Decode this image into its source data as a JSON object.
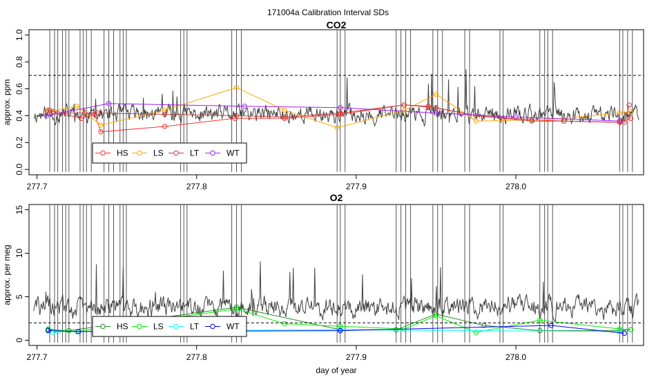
{
  "figure_title": "171004a   Calibration Interval SDs",
  "chart_data": [
    {
      "type": "line",
      "title": "CO2",
      "xlabel": "",
      "ylabel": "approx. ppm",
      "xlim": [
        277.695,
        278.08
      ],
      "ylim": [
        -0.04,
        1.04
      ],
      "x_ticks": [
        277.7,
        277.8,
        277.9,
        278.0
      ],
      "x_tick_labels": [
        "277.7",
        "277.8",
        "277.9",
        "278.0"
      ],
      "y_ticks": [
        0.0,
        0.2,
        0.4,
        0.6,
        0.8,
        1.0
      ],
      "y_tick_labels": [
        "0.0",
        "0.2",
        "0.4",
        "0.6",
        "0.8",
        "1.0"
      ],
      "threshold": 0.7,
      "trace": {
        "color": "#404040",
        "baseline": 0.41,
        "noise": 0.05,
        "seed": 11
      },
      "spike_x": [
        277.708,
        277.711,
        277.713,
        277.716,
        277.718,
        277.72,
        277.727,
        277.729,
        277.731,
        277.734,
        277.742,
        277.745,
        277.748,
        277.752,
        277.754,
        277.756,
        277.79,
        277.792,
        277.794,
        277.822,
        277.825,
        277.828,
        277.888,
        277.89,
        277.893,
        277.925,
        277.928,
        277.931,
        277.934,
        277.948,
        277.951,
        277.954,
        277.968,
        277.971,
        277.99,
        277.992,
        278.015,
        278.018,
        278.02,
        278.023,
        278.065,
        278.067,
        278.07,
        278.073
      ],
      "series": [
        {
          "name": "HS",
          "color": "#ff3030",
          "x": [
            277.707,
            277.71,
            277.728,
            277.736,
            277.74,
            277.78,
            277.824,
            277.855,
            277.89,
            277.93,
            277.945,
            277.975,
            278.01,
            278.03,
            278.065,
            278.072
          ],
          "y": [
            0.44,
            0.43,
            0.38,
            0.41,
            0.28,
            0.32,
            0.38,
            0.38,
            0.41,
            0.48,
            0.47,
            0.4,
            0.37,
            0.36,
            0.35,
            0.38
          ]
        },
        {
          "name": "LS",
          "color": "#ffa500",
          "x": [
            277.707,
            277.725,
            277.74,
            277.78,
            277.825,
            277.855,
            277.888,
            277.93,
            277.95,
            277.975,
            278.02,
            278.065,
            278.072
          ],
          "y": [
            0.43,
            0.47,
            0.33,
            0.44,
            0.61,
            0.44,
            0.31,
            0.44,
            0.56,
            0.36,
            0.37,
            0.42,
            0.43
          ]
        },
        {
          "name": "LT",
          "color": "#c04040",
          "x": [
            277.708,
            277.71,
            277.713,
            277.73,
            277.738,
            277.78,
            277.825,
            277.855,
            277.89,
            277.93,
            277.95,
            277.975,
            278.01,
            278.03,
            278.068,
            278.071
          ],
          "y": [
            0.44,
            0.43,
            0.42,
            0.42,
            0.42,
            0.41,
            0.4,
            0.39,
            0.42,
            0.48,
            0.46,
            0.4,
            0.36,
            0.36,
            0.35,
            0.48
          ]
        },
        {
          "name": "WT",
          "color": "#a020f0",
          "x": [
            277.706,
            277.745,
            277.83,
            277.89,
            277.95,
            278.0,
            278.065
          ],
          "y": [
            0.4,
            0.49,
            0.47,
            0.46,
            0.42,
            0.39,
            0.36
          ]
        }
      ],
      "legend": {
        "position": "bottom-left",
        "entries": [
          "HS",
          "LS",
          "LT",
          "WT"
        ]
      }
    },
    {
      "type": "line",
      "title": "O2",
      "xlabel": "day of year",
      "ylabel": "approx. per meg",
      "xlim": [
        277.695,
        278.08
      ],
      "ylim": [
        -0.6,
        15.6
      ],
      "x_ticks": [
        277.7,
        277.8,
        277.9,
        278.0
      ],
      "x_tick_labels": [
        "277.7",
        "277.8",
        "277.9",
        "278.0"
      ],
      "y_ticks": [
        0,
        5,
        10,
        15
      ],
      "y_tick_labels": [
        "0",
        "5",
        "10",
        "15"
      ],
      "threshold": 2.0,
      "trace": {
        "color": "#404040",
        "baseline": 3.8,
        "noise": 0.9,
        "seed": 29
      },
      "spike_x": [
        277.708,
        277.711,
        277.713,
        277.716,
        277.718,
        277.72,
        277.727,
        277.729,
        277.731,
        277.734,
        277.742,
        277.745,
        277.748,
        277.752,
        277.754,
        277.756,
        277.79,
        277.792,
        277.794,
        277.822,
        277.825,
        277.828,
        277.888,
        277.89,
        277.893,
        277.925,
        277.928,
        277.931,
        277.934,
        277.948,
        277.951,
        277.954,
        277.968,
        277.971,
        277.99,
        277.992,
        278.015,
        278.018,
        278.02,
        278.023,
        278.065,
        278.067,
        278.07,
        278.073
      ],
      "series": [
        {
          "name": "HS",
          "color": "#228b22",
          "x": [
            277.707,
            277.72,
            277.825,
            277.89,
            277.925,
            277.95,
            277.98,
            278.015,
            278.065,
            278.072
          ],
          "y": [
            1.2,
            1.1,
            3.8,
            1.2,
            1.2,
            3.0,
            1.7,
            1.1,
            1.1,
            1.2
          ]
        },
        {
          "name": "LS",
          "color": "#00ee00",
          "x": [
            277.707,
            277.725,
            277.825,
            277.855,
            277.89,
            277.93,
            277.95,
            277.975,
            278.015,
            278.065,
            278.072
          ],
          "y": [
            1.3,
            1.0,
            3.6,
            1.9,
            1.6,
            1.3,
            2.8,
            0.9,
            2.3,
            1.3,
            1.2
          ]
        },
        {
          "name": "LT",
          "color": "#00ffff",
          "x": [
            277.71,
            277.713,
            277.89,
            278.065
          ],
          "y": [
            0.9,
            1.0,
            1.2,
            1.0
          ]
        },
        {
          "name": "WT",
          "color": "#0000ff",
          "x": [
            277.707,
            277.726,
            277.89,
            278.022,
            278.068
          ],
          "y": [
            1.1,
            1.0,
            1.1,
            1.7,
            0.8
          ]
        }
      ],
      "legend": {
        "position": "bottom-left",
        "entries": [
          "HS",
          "LS",
          "LT",
          "WT"
        ]
      }
    }
  ]
}
